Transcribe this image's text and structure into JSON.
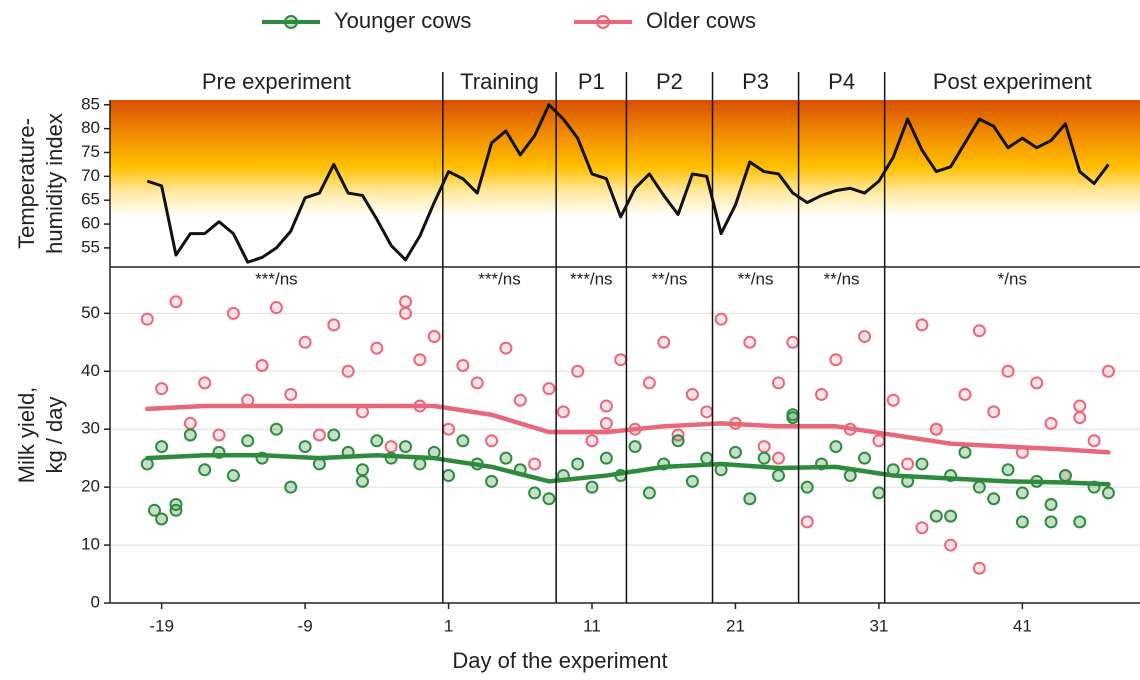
{
  "chart_data": [
    {
      "type": "line",
      "y_label": [
        "Temperature-",
        "humidity index"
      ],
      "periods": [
        "Pre experiment",
        "Training",
        "P1",
        "P2",
        "P3",
        "P4",
        "Post experiment"
      ],
      "boundaries": [
        0.6,
        8.5,
        13.4,
        19.4,
        25.4,
        31.4
      ],
      "xlim": [
        -22.6,
        49.2
      ],
      "ylim": [
        51,
        86
      ],
      "yticks": [
        55,
        60,
        65,
        70,
        75,
        80,
        85
      ],
      "color": "#111111",
      "x": [
        -20,
        -19,
        -18,
        -17,
        -16,
        -15,
        -14,
        -13,
        -12,
        -11,
        -10,
        -9,
        -8,
        -7,
        -6,
        -5,
        -4,
        -3,
        -2,
        -1,
        0,
        1,
        2,
        3,
        4,
        5,
        6,
        7,
        8,
        9,
        10,
        11,
        12,
        13,
        14,
        15,
        16,
        17,
        18,
        19,
        20,
        21,
        22,
        23,
        24,
        25,
        26,
        27,
        28,
        29,
        30,
        31,
        32,
        33,
        34,
        35,
        36,
        37,
        38,
        39,
        40,
        41,
        42,
        43,
        44,
        45,
        46,
        47
      ],
      "values": [
        69,
        68,
        53.5,
        58,
        58,
        60.5,
        58,
        52,
        53,
        55,
        58.5,
        65.5,
        66.5,
        72.5,
        66.5,
        66,
        61,
        55.5,
        52.5,
        57.5,
        64.5,
        71,
        69.5,
        66.5,
        77,
        79.5,
        74.5,
        78.5,
        85,
        82,
        78,
        70.5,
        69.5,
        61.5,
        67.5,
        70.5,
        66,
        62,
        70.5,
        70,
        58,
        64,
        73,
        71,
        70.5,
        66.5,
        64.5,
        66,
        67,
        67.5,
        66.5,
        69,
        74,
        82,
        75.5,
        71,
        72,
        77,
        82,
        80.5,
        76,
        78,
        76,
        77.5,
        81,
        71,
        68.5,
        72.5
      ]
    },
    {
      "type": "scatter",
      "x_label": "Day of the experiment",
      "y_label": [
        "Milk yield,",
        "kg / day"
      ],
      "annotations": [
        "***/ns",
        "***/ns",
        "***/ns",
        "**/ns",
        "**/ns",
        "**/ns",
        "*/ns"
      ],
      "xlim": [
        -22.6,
        49.2
      ],
      "xticks": [
        -19,
        -9,
        1,
        11,
        21,
        31,
        41
      ],
      "ylim": [
        0,
        58
      ],
      "yticks": [
        0,
        10,
        20,
        30,
        40,
        50
      ],
      "grid": true,
      "series": [
        {
          "name": "Younger cows",
          "color": "#2e8b3e",
          "x": [
            -20,
            -19,
            -18,
            -17,
            -16,
            -15,
            -14,
            -13,
            -12,
            -11,
            -10,
            -9,
            -8,
            -7,
            -6,
            -5,
            -4,
            -3,
            -2,
            -1,
            0,
            1,
            2,
            3,
            4,
            5,
            6,
            7,
            8,
            9,
            10,
            11,
            12,
            13,
            14,
            15,
            16,
            17,
            18,
            19,
            20,
            21,
            22,
            23,
            24,
            25,
            26,
            27,
            28,
            29,
            30,
            31,
            32,
            33,
            34,
            35,
            36,
            37,
            38,
            39,
            40,
            41,
            42,
            43,
            44,
            45,
            46,
            47,
            -19.5,
            -19,
            -18,
            36,
            41,
            43,
            25,
            -5
          ],
          "values": [
            24,
            27,
            16,
            29,
            23,
            26,
            22,
            28,
            25,
            30,
            20,
            27,
            24,
            29,
            26,
            23,
            28,
            25,
            27,
            24,
            26,
            22,
            28,
            24,
            21,
            25,
            23,
            19,
            18,
            22,
            24,
            20,
            25,
            22,
            27,
            19,
            24,
            28,
            21,
            25,
            23,
            26,
            18,
            25,
            22,
            32,
            20,
            24,
            27,
            22,
            25,
            19,
            23,
            21,
            24,
            15,
            22,
            26,
            20,
            18,
            23,
            19,
            21,
            17,
            22,
            14,
            20,
            19,
            16,
            14.5,
            17,
            15,
            14,
            14,
            32.5,
            21
          ],
          "trend_x": [
            -20,
            -16,
            -12,
            -8,
            -4,
            0,
            4,
            8,
            12,
            16,
            20,
            24,
            28,
            32,
            36,
            40,
            44,
            47
          ],
          "trend_values": [
            25,
            25.5,
            25.5,
            25,
            25.5,
            25,
            23.5,
            21,
            22,
            23.5,
            24,
            23.3,
            23.5,
            22,
            21.5,
            21,
            20.8,
            20.5
          ]
        },
        {
          "name": "Older cows",
          "color": "#e8677a",
          "x": [
            -20,
            -19,
            -18,
            -17,
            -16,
            -15,
            -14,
            -13,
            -12,
            -11,
            -10,
            -9,
            -8,
            -7,
            -6,
            -5,
            -4,
            -3,
            -2,
            -1,
            0,
            1,
            2,
            3,
            4,
            5,
            6,
            7,
            8,
            9,
            10,
            11,
            12,
            13,
            14,
            15,
            16,
            17,
            18,
            19,
            20,
            21,
            22,
            23,
            24,
            25,
            26,
            27,
            28,
            29,
            30,
            31,
            32,
            33,
            34,
            35,
            36,
            37,
            38,
            39,
            40,
            41,
            42,
            43,
            44,
            45,
            46,
            47,
            -2,
            -1,
            38,
            34,
            35,
            24,
            45,
            12
          ],
          "values": [
            49,
            37,
            52,
            31,
            38,
            29,
            50,
            35,
            41,
            51,
            36,
            45,
            29,
            48,
            40,
            33,
            44,
            27,
            50,
            34,
            46,
            30,
            41,
            38,
            28,
            44,
            35,
            24,
            37,
            33,
            40,
            28,
            34,
            42,
            30,
            38,
            45,
            29,
            36,
            33,
            49,
            31,
            45,
            27,
            38,
            45,
            14,
            36,
            42,
            30,
            46,
            28,
            35,
            24,
            48,
            30,
            10,
            36,
            6,
            33,
            40,
            26,
            38,
            31,
            22,
            34,
            28,
            40,
            52,
            42,
            47,
            13,
            30,
            25,
            32,
            31
          ],
          "trend_x": [
            -20,
            -16,
            -12,
            -8,
            -4,
            0,
            4,
            8,
            12,
            16,
            20,
            24,
            28,
            32,
            36,
            40,
            44,
            47
          ],
          "trend_values": [
            33.5,
            34,
            34,
            34,
            34,
            34,
            32.5,
            29.5,
            29.5,
            30.5,
            31,
            30.5,
            30.5,
            29,
            27.5,
            27,
            26.5,
            26
          ]
        }
      ]
    }
  ]
}
